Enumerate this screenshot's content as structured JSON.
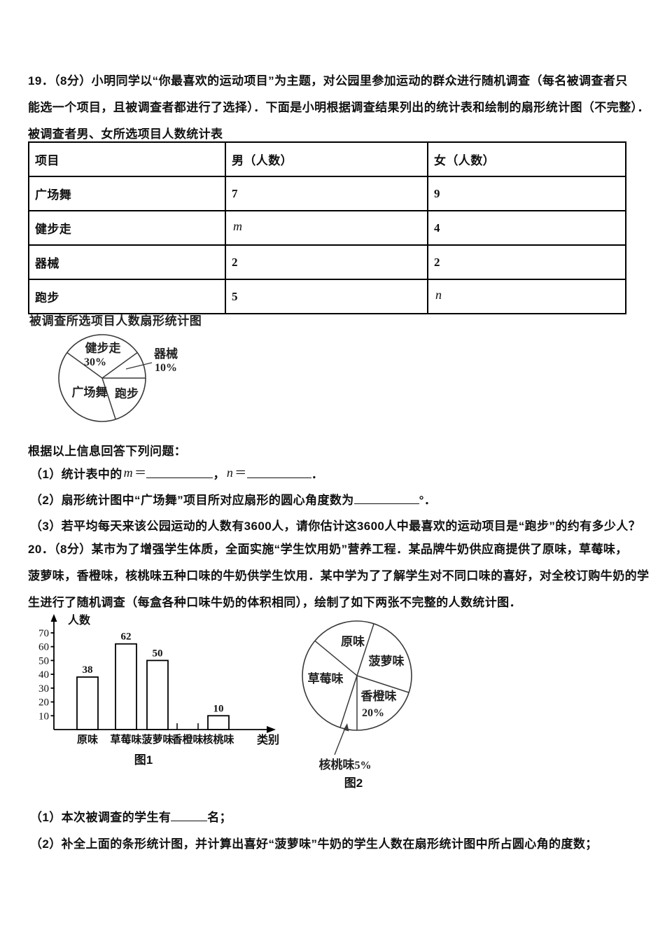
{
  "p19": {
    "para": [
      "19．（8分）小明同学以“你最喜欢的运动项目”为主题，对公园里参加运动的群众进行随机调查（每名被调查者只",
      "能选一个项目，且被调查者都进行了选择）．下面是小明根据调查结果列出的统计表和绘制的扇形统计图（不完整）．",
      "被调查者男、女所选项目人数统计表"
    ],
    "table": {
      "headers": [
        "项目",
        "男（人数）",
        "女（人数）"
      ],
      "rows": [
        [
          "广场舞",
          "7",
          "9"
        ],
        [
          "健步走",
          "m",
          "4"
        ],
        [
          "器械",
          "2",
          "2"
        ],
        [
          "跑步",
          "5",
          "n"
        ]
      ]
    },
    "prompt": "根据以上信息回答下列问题：",
    "q1": {
      "prefix": "（1）统计表中的",
      "m": "m",
      "eq1": "＝",
      "comma": "，",
      "n": "n",
      "eq2": "＝",
      "period": "．"
    },
    "q2": {
      "prefix": "（2）扇形统计图中“广场舞”项目所对应扇形的圆心角度数为",
      "suffix": "°．"
    },
    "q3": "（3）若平均每天来该公园运动的人数有3600人，请你估计这3600人中最喜欢的运动项目是“跑步”的约有多少人？"
  },
  "p20": {
    "para": [
      "20．（8分）某市为了增强学生体质，全面实施“学生饮用奶”营养工程．某品牌牛奶供应商提供了原味，草莓味，",
      "菠萝味，香橙味，核桃味五种口味的牛奶供学生饮用．某中学为了了解学生对不同口味的喜好，对全校订购牛奶的学",
      "生进行了随机调查（每盒各种口味牛奶的体积相同），绘制了如下两张不完整的人数统计图．"
    ],
    "q1": {
      "prefix": "（1）本次被调查的学生有",
      "suffix": "名；"
    },
    "q2": "（2）补全上面的条形统计图，并计算出喜好“菠萝味”牛奶的学生人数在扇形统计图中所占圆心角的度数；"
  },
  "chart_data": [
    {
      "type": "pie",
      "title": "被调查所选项目人数扇形统计图",
      "slices": [
        {
          "label": "健步走",
          "pct": 30,
          "pct_text": "30%",
          "start_deg": 36,
          "end_deg": 144
        },
        {
          "label": "器械",
          "pct": 10,
          "pct_text": "10%",
          "start_deg": 0,
          "end_deg": 36
        },
        {
          "label": "广场舞",
          "pct": null,
          "start_deg": 144,
          "end_deg": 288
        },
        {
          "label": "跑步",
          "pct": null,
          "start_deg": 288,
          "end_deg": 360
        }
      ],
      "note": "incomplete pie chart: 广场舞 and 跑步 percentages not labeled"
    },
    {
      "type": "bar",
      "categories": [
        "原味",
        "草莓味",
        "菠萝味",
        "香橙味",
        "核桃味"
      ],
      "values": [
        38,
        62,
        50,
        null,
        10
      ],
      "ylabel": "人数",
      "xlabel": "类别",
      "yticks": [
        10,
        20,
        30,
        40,
        50,
        60,
        70
      ],
      "ylim": [
        0,
        75
      ],
      "caption": "图1",
      "note": "香橙味 bar missing (chart to be completed); only edge ticks drawn on axis"
    },
    {
      "type": "pie",
      "slices": [
        {
          "label": "原味",
          "pct": null,
          "start_deg": 72,
          "end_deg": 140.4
        },
        {
          "label": "菠萝味",
          "pct": null,
          "start_deg": -18,
          "end_deg": 72
        },
        {
          "label": "香橙味",
          "pct": 20,
          "pct_text": "20%",
          "start_deg": 270,
          "end_deg": 342
        },
        {
          "label": "核桃味",
          "pct": 5,
          "pct_text": "5%",
          "start_deg": 252,
          "end_deg": 270
        },
        {
          "label": "草莓味",
          "pct": null,
          "start_deg": 140.4,
          "end_deg": 252
        }
      ],
      "caption": "图2",
      "note": "核桃味 5% labeled outside with arrow; 原味/菠萝味/草莓味 percentages not labeled"
    }
  ]
}
